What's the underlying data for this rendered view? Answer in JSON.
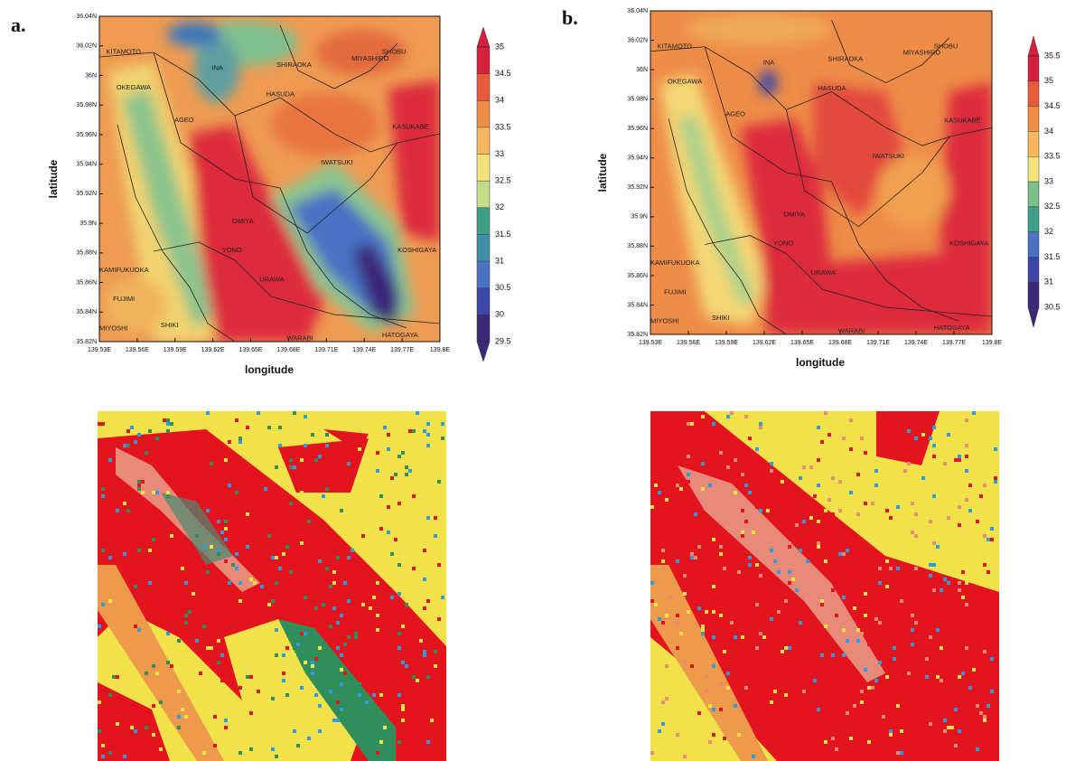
{
  "panels": [
    {
      "label": "a.",
      "xlabel": "longitude",
      "ylabel": "latitude",
      "xlim": [
        139.53,
        139.8
      ],
      "ylim": [
        35.82,
        36.04
      ],
      "xticks": [
        {
          "value": 139.53,
          "label": "139.53E"
        },
        {
          "value": 139.56,
          "label": "139.56E"
        },
        {
          "value": 139.59,
          "label": "139.59E"
        },
        {
          "value": 139.62,
          "label": "139.62E"
        },
        {
          "value": 139.65,
          "label": "139.65E"
        },
        {
          "value": 139.68,
          "label": "139.68E"
        },
        {
          "value": 139.71,
          "label": "139.71E"
        },
        {
          "value": 139.74,
          "label": "139.74E"
        },
        {
          "value": 139.77,
          "label": "139.77E"
        },
        {
          "value": 139.8,
          "label": "139.8E"
        }
      ],
      "yticks": [
        {
          "value": 35.82,
          "label": "35.82N"
        },
        {
          "value": 35.84,
          "label": "35.84N"
        },
        {
          "value": 35.86,
          "label": "35.86N"
        },
        {
          "value": 35.88,
          "label": "35.88N"
        },
        {
          "value": 35.9,
          "label": "35.9N"
        },
        {
          "value": 35.92,
          "label": "35.92N"
        },
        {
          "value": 35.94,
          "label": "35.94N"
        },
        {
          "value": 35.96,
          "label": "35.96N"
        },
        {
          "value": 35.98,
          "label": "35.98N"
        },
        {
          "value": 36,
          "label": "36N"
        },
        {
          "value": 36.02,
          "label": "36.02N"
        },
        {
          "value": 36.04,
          "label": "36.04N"
        }
      ],
      "colorbar": {
        "ticks": [
          29.5,
          30,
          30.5,
          31,
          31.5,
          32,
          32.5,
          33,
          33.5,
          34,
          34.5,
          35
        ],
        "colors": [
          "#3a2878",
          "#3b47a8",
          "#4a72c4",
          "#3f8fa8",
          "#3f9e86",
          "#7cbf88",
          "#c5dc88",
          "#f3e27a",
          "#f5b85e",
          "#ee8c48",
          "#e75a3c",
          "#d81f3c"
        ]
      }
    },
    {
      "label": "b.",
      "xlabel": "longitude",
      "ylabel": "latitude",
      "xlim": [
        139.53,
        139.8
      ],
      "ylim": [
        35.82,
        36.04
      ],
      "xticks": [
        {
          "value": 139.53,
          "label": "139.53E"
        },
        {
          "value": 139.56,
          "label": "139.56E"
        },
        {
          "value": 139.59,
          "label": "139.59E"
        },
        {
          "value": 139.62,
          "label": "139.62E"
        },
        {
          "value": 139.65,
          "label": "139.65E"
        },
        {
          "value": 139.68,
          "label": "139.68E"
        },
        {
          "value": 139.71,
          "label": "139.71E"
        },
        {
          "value": 139.74,
          "label": "139.74E"
        },
        {
          "value": 139.77,
          "label": "139.77E"
        },
        {
          "value": 139.8,
          "label": "139.8E"
        }
      ],
      "yticks": [
        {
          "value": 35.82,
          "label": "35.82N"
        },
        {
          "value": 35.84,
          "label": "35.84N"
        },
        {
          "value": 35.86,
          "label": "35.86N"
        },
        {
          "value": 35.88,
          "label": "35.88N"
        },
        {
          "value": 35.9,
          "label": "35.9N"
        },
        {
          "value": 35.92,
          "label": "35.92N"
        },
        {
          "value": 35.94,
          "label": "35.94N"
        },
        {
          "value": 35.96,
          "label": "35.96N"
        },
        {
          "value": 35.98,
          "label": "35.98N"
        },
        {
          "value": 36,
          "label": "36N"
        },
        {
          "value": 36.02,
          "label": "36.02N"
        },
        {
          "value": 36.04,
          "label": "36.04N"
        }
      ],
      "colorbar": {
        "ticks": [
          30.5,
          31,
          31.5,
          32,
          32.5,
          33,
          33.5,
          34,
          34.5,
          35,
          35.5
        ],
        "colors": [
          "#3a2878",
          "#3b47a8",
          "#4a72c4",
          "#3f9e86",
          "#7cbf88",
          "#c5dc88",
          "#f3e27a",
          "#f5b85e",
          "#ee8c48",
          "#e75a3c",
          "#d81f3c"
        ]
      }
    }
  ],
  "places": [
    "KITAMOTO",
    "OKEGAWA",
    "INA",
    "SHIRAOKA",
    "MIYASHIRO",
    "SHOBU",
    "HASUDA",
    "AGEO",
    "KASUKABE",
    "IWATSUKI",
    "OMIYA",
    "YONO",
    "URAWA",
    "KOSHIGAYA",
    "KAMIFUKUOKA",
    "FUJIMI",
    "SHIKI",
    "MIYOSHI",
    "WARABI",
    "HATOGAYA"
  ]
}
